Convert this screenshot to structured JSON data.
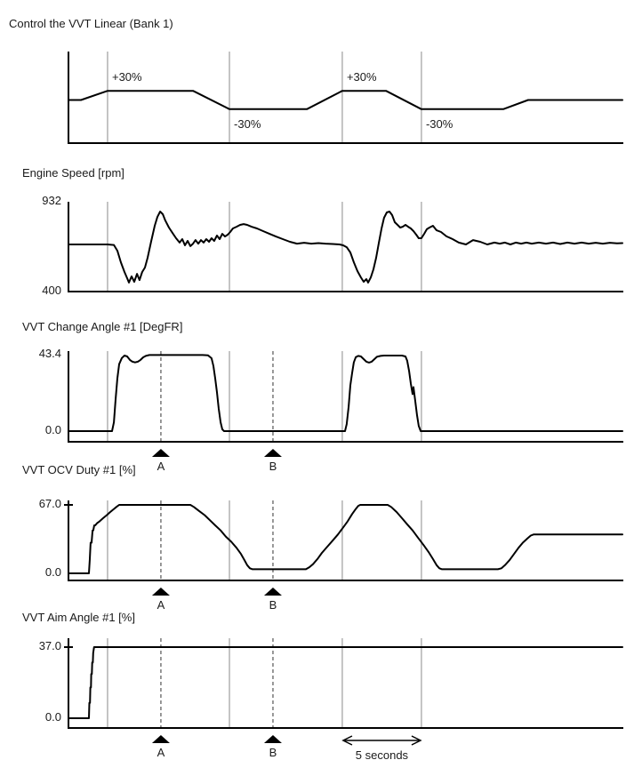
{
  "colors": {
    "waveform": "#000000",
    "axis": "#000000",
    "gridline": "#8a8a8a",
    "dashed_marker": "#333333",
    "text": "#1a1a1a",
    "background": "#ffffff"
  },
  "time_axis": {
    "visible_span_seconds": 35,
    "gridlines_s": [
      2.47,
      10.17,
      17.3,
      22.3
    ]
  },
  "markers": [
    {
      "label": "A",
      "t": 5.84
    },
    {
      "label": "B",
      "t": 12.92
    }
  ],
  "scale_arrow": {
    "label": "5 seconds",
    "t_from": 17.3,
    "t_to": 22.3
  },
  "chart_data": [
    {
      "type": "line",
      "title": "Control the VVT Linear (Bank 1)",
      "unit": "%",
      "y_axis": null,
      "ylim": [
        -45,
        45
      ],
      "annotations": [
        {
          "text": "+30%",
          "t": 2.64,
          "v": 30,
          "side": "above"
        },
        {
          "text": "-30%",
          "t": 10.34,
          "v": -30,
          "side": "below"
        },
        {
          "text": "+30%",
          "t": 17.47,
          "v": 30,
          "side": "above"
        },
        {
          "text": "-30%",
          "t": 22.47,
          "v": -30,
          "side": "below"
        }
      ],
      "series": [
        [
          0,
          0
        ],
        [
          0.79,
          0
        ],
        [
          2.47,
          30
        ],
        [
          7.87,
          30
        ],
        [
          10.17,
          -30
        ],
        [
          15.06,
          -30
        ],
        [
          17.3,
          30
        ],
        [
          20.06,
          30
        ],
        [
          22.3,
          -30
        ],
        [
          27.47,
          -30
        ],
        [
          29.04,
          0
        ],
        [
          35,
          0
        ]
      ]
    },
    {
      "type": "line",
      "title": "Engine Speed [rpm]",
      "unit": "rpm",
      "y_axis": {
        "top_label": "932",
        "bottom_label": "400",
        "top_value": 932,
        "bottom_value": 400,
        "top_tick": false
      },
      "ylim": [
        400,
        932
      ],
      "annotations": [],
      "series": [
        [
          0,
          679
        ],
        [
          1.29,
          679
        ],
        [
          2.47,
          679
        ],
        [
          2.87,
          676
        ],
        [
          3.09,
          642
        ],
        [
          3.31,
          574
        ],
        [
          3.54,
          516
        ],
        [
          3.71,
          479
        ],
        [
          3.82,
          453
        ],
        [
          3.99,
          490
        ],
        [
          4.16,
          458
        ],
        [
          4.33,
          505
        ],
        [
          4.49,
          468
        ],
        [
          4.66,
          516
        ],
        [
          4.83,
          542
        ],
        [
          5.0,
          600
        ],
        [
          5.22,
          695
        ],
        [
          5.45,
          790
        ],
        [
          5.62,
          842
        ],
        [
          5.79,
          874
        ],
        [
          5.96,
          858
        ],
        [
          6.12,
          821
        ],
        [
          6.35,
          779
        ],
        [
          6.57,
          748
        ],
        [
          6.8,
          716
        ],
        [
          7.02,
          690
        ],
        [
          7.19,
          711
        ],
        [
          7.36,
          674
        ],
        [
          7.53,
          700
        ],
        [
          7.7,
          669
        ],
        [
          7.87,
          684
        ],
        [
          8.03,
          705
        ],
        [
          8.2,
          684
        ],
        [
          8.37,
          705
        ],
        [
          8.54,
          690
        ],
        [
          8.71,
          711
        ],
        [
          8.88,
          695
        ],
        [
          9.04,
          716
        ],
        [
          9.21,
          700
        ],
        [
          9.38,
          732
        ],
        [
          9.55,
          711
        ],
        [
          9.72,
          742
        ],
        [
          9.89,
          726
        ],
        [
          10.06,
          737
        ],
        [
          10.22,
          753
        ],
        [
          10.39,
          774
        ],
        [
          10.62,
          784
        ],
        [
          10.84,
          795
        ],
        [
          11.07,
          800
        ],
        [
          11.29,
          795
        ],
        [
          11.57,
          784
        ],
        [
          11.91,
          774
        ],
        [
          12.3,
          758
        ],
        [
          12.7,
          742
        ],
        [
          13.09,
          727
        ],
        [
          13.54,
          711
        ],
        [
          13.99,
          695
        ],
        [
          14.44,
          684
        ],
        [
          14.89,
          689
        ],
        [
          15.34,
          684
        ],
        [
          15.79,
          687
        ],
        [
          16.24,
          684
        ],
        [
          16.69,
          682
        ],
        [
          17.13,
          679
        ],
        [
          17.36,
          674
        ],
        [
          17.58,
          663
        ],
        [
          17.81,
          632
        ],
        [
          18.03,
          574
        ],
        [
          18.26,
          521
        ],
        [
          18.48,
          484
        ],
        [
          18.65,
          458
        ],
        [
          18.82,
          474
        ],
        [
          18.93,
          453
        ],
        [
          19.1,
          484
        ],
        [
          19.27,
          532
        ],
        [
          19.44,
          600
        ],
        [
          19.61,
          690
        ],
        [
          19.78,
          774
        ],
        [
          19.94,
          837
        ],
        [
          20.11,
          869
        ],
        [
          20.28,
          874
        ],
        [
          20.45,
          853
        ],
        [
          20.62,
          811
        ],
        [
          20.79,
          795
        ],
        [
          20.96,
          779
        ],
        [
          21.12,
          784
        ],
        [
          21.29,
          795
        ],
        [
          21.46,
          784
        ],
        [
          21.63,
          774
        ],
        [
          21.8,
          758
        ],
        [
          21.97,
          737
        ],
        [
          22.13,
          716
        ],
        [
          22.3,
          716
        ],
        [
          22.47,
          742
        ],
        [
          22.64,
          769
        ],
        [
          22.81,
          779
        ],
        [
          23.03,
          790
        ],
        [
          23.26,
          763
        ],
        [
          23.54,
          753
        ],
        [
          23.88,
          727
        ],
        [
          24.27,
          711
        ],
        [
          24.66,
          690
        ],
        [
          25.11,
          679
        ],
        [
          25.56,
          705
        ],
        [
          26.01,
          695
        ],
        [
          26.46,
          679
        ],
        [
          26.91,
          690
        ],
        [
          27.25,
          684
        ],
        [
          27.58,
          690
        ],
        [
          27.92,
          679
        ],
        [
          28.26,
          690
        ],
        [
          28.6,
          684
        ],
        [
          28.93,
          690
        ],
        [
          29.27,
          684
        ],
        [
          29.72,
          690
        ],
        [
          30.17,
          684
        ],
        [
          30.62,
          690
        ],
        [
          31.07,
          682
        ],
        [
          31.52,
          690
        ],
        [
          31.97,
          684
        ],
        [
          32.42,
          690
        ],
        [
          32.87,
          684
        ],
        [
          33.31,
          689
        ],
        [
          33.76,
          684
        ],
        [
          34.21,
          689
        ],
        [
          34.66,
          686
        ],
        [
          35,
          687
        ]
      ]
    },
    {
      "type": "line",
      "title": "VVT Change Angle #1 [DegFR]",
      "unit": "DegFR",
      "y_axis": {
        "top_label": "43.4",
        "bottom_label": "0.0",
        "top_value": 43.4,
        "bottom_value": 0,
        "top_tick": false
      },
      "ylim": [
        0,
        43.4
      ],
      "show_markers": true,
      "annotations": [],
      "series": [
        [
          0,
          0
        ],
        [
          2.75,
          0
        ],
        [
          2.87,
          5
        ],
        [
          2.98,
          18
        ],
        [
          3.09,
          30
        ],
        [
          3.2,
          38
        ],
        [
          3.37,
          41.5
        ],
        [
          3.54,
          42.9
        ],
        [
          3.71,
          42.4
        ],
        [
          3.88,
          40.4
        ],
        [
          4.04,
          39.4
        ],
        [
          4.21,
          39
        ],
        [
          4.38,
          39.4
        ],
        [
          4.55,
          40.4
        ],
        [
          4.72,
          41.9
        ],
        [
          4.89,
          42.7
        ],
        [
          5.11,
          43.2
        ],
        [
          5.34,
          43.2
        ],
        [
          8.48,
          43.2
        ],
        [
          8.82,
          43
        ],
        [
          9.04,
          41.4
        ],
        [
          9.16,
          37
        ],
        [
          9.27,
          30
        ],
        [
          9.38,
          22
        ],
        [
          9.49,
          13
        ],
        [
          9.61,
          5
        ],
        [
          9.72,
          1
        ],
        [
          9.83,
          0
        ],
        [
          17.47,
          0
        ],
        [
          17.58,
          4
        ],
        [
          17.7,
          14
        ],
        [
          17.81,
          26
        ],
        [
          17.92,
          33
        ],
        [
          18.03,
          39
        ],
        [
          18.15,
          42
        ],
        [
          18.31,
          42.7
        ],
        [
          18.48,
          42.4
        ],
        [
          18.65,
          40.9
        ],
        [
          18.82,
          39.4
        ],
        [
          18.99,
          38.9
        ],
        [
          19.16,
          39.4
        ],
        [
          19.33,
          40.9
        ],
        [
          19.49,
          42.2
        ],
        [
          19.72,
          42.7
        ],
        [
          19.94,
          42.9
        ],
        [
          21.07,
          42.9
        ],
        [
          21.29,
          42.4
        ],
        [
          21.4,
          40
        ],
        [
          21.52,
          34
        ],
        [
          21.63,
          27
        ],
        [
          21.74,
          21
        ],
        [
          21.8,
          25
        ],
        [
          21.91,
          17
        ],
        [
          22.02,
          9
        ],
        [
          22.13,
          3
        ],
        [
          22.25,
          0
        ],
        [
          35,
          0
        ]
      ]
    },
    {
      "type": "line",
      "title": "VVT OCV Duty #1 [%]",
      "unit": "%",
      "y_axis": {
        "top_label": "67.0",
        "bottom_label": "0.0",
        "top_value": 67,
        "bottom_value": 0,
        "top_tick": true
      },
      "ylim": [
        0,
        67
      ],
      "show_markers": true,
      "annotations": [],
      "series": [
        [
          0,
          0
        ],
        [
          1.29,
          0
        ],
        [
          1.35,
          14
        ],
        [
          1.4,
          30
        ],
        [
          1.46,
          30
        ],
        [
          1.52,
          42
        ],
        [
          1.57,
          42
        ],
        [
          1.63,
          47
        ],
        [
          1.69,
          47
        ],
        [
          1.8,
          49
        ],
        [
          1.97,
          51
        ],
        [
          2.19,
          54
        ],
        [
          2.42,
          57
        ],
        [
          2.64,
          60
        ],
        [
          2.87,
          63
        ],
        [
          3.03,
          65
        ],
        [
          3.2,
          67
        ],
        [
          7.7,
          67
        ],
        [
          7.92,
          65
        ],
        [
          8.26,
          61
        ],
        [
          8.6,
          57
        ],
        [
          8.93,
          52
        ],
        [
          9.27,
          47
        ],
        [
          9.61,
          42
        ],
        [
          9.94,
          36
        ],
        [
          10.28,
          31
        ],
        [
          10.62,
          25
        ],
        [
          10.9,
          19
        ],
        [
          11.12,
          13
        ],
        [
          11.29,
          8
        ],
        [
          11.46,
          5
        ],
        [
          11.63,
          4
        ],
        [
          15,
          4
        ],
        [
          15.22,
          6
        ],
        [
          15.45,
          9
        ],
        [
          15.73,
          14
        ],
        [
          16.01,
          20
        ],
        [
          16.35,
          26
        ],
        [
          16.69,
          32
        ],
        [
          17.02,
          38
        ],
        [
          17.36,
          45
        ],
        [
          17.64,
          51
        ],
        [
          17.92,
          58
        ],
        [
          18.15,
          63
        ],
        [
          18.31,
          66
        ],
        [
          18.43,
          67
        ],
        [
          20.17,
          67
        ],
        [
          20.39,
          65
        ],
        [
          20.73,
          60
        ],
        [
          21.07,
          54
        ],
        [
          21.4,
          48
        ],
        [
          21.74,
          42
        ],
        [
          22.08,
          35
        ],
        [
          22.42,
          28
        ],
        [
          22.75,
          21
        ],
        [
          23.03,
          14
        ],
        [
          23.26,
          8
        ],
        [
          23.43,
          5
        ],
        [
          23.6,
          4
        ],
        [
          27.13,
          4
        ],
        [
          27.36,
          5
        ],
        [
          27.58,
          8
        ],
        [
          27.87,
          13
        ],
        [
          28.15,
          19
        ],
        [
          28.43,
          25
        ],
        [
          28.71,
          30
        ],
        [
          28.99,
          34
        ],
        [
          29.21,
          37
        ],
        [
          29.38,
          38
        ],
        [
          35,
          38
        ]
      ]
    },
    {
      "type": "line",
      "title": "VVT Aim Angle #1 [%]",
      "unit": "%",
      "y_axis": {
        "top_label": "37.0",
        "bottom_label": "0.0",
        "top_value": 37,
        "bottom_value": 0,
        "top_tick": true
      },
      "ylim": [
        0,
        37
      ],
      "show_markers": true,
      "show_scale_arrow": true,
      "annotations": [],
      "series": [
        [
          0,
          0
        ],
        [
          1.29,
          0
        ],
        [
          1.32,
          8
        ],
        [
          1.36,
          8
        ],
        [
          1.38,
          16
        ],
        [
          1.42,
          16
        ],
        [
          1.44,
          23
        ],
        [
          1.48,
          23
        ],
        [
          1.5,
          29
        ],
        [
          1.54,
          29
        ],
        [
          1.56,
          34
        ],
        [
          1.62,
          37
        ],
        [
          35,
          37
        ]
      ]
    }
  ]
}
